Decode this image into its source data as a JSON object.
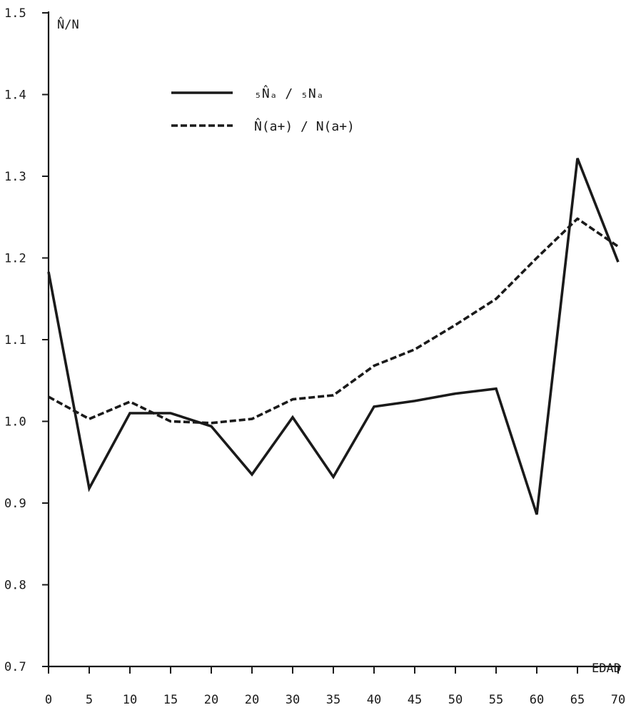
{
  "chart_data": {
    "type": "line",
    "ylabel": "N̂/N",
    "xlabel": "EDAD",
    "x_ticks": [
      "0",
      "5",
      "10",
      "15",
      "20",
      "20",
      "30",
      "35",
      "40",
      "45",
      "50",
      "55",
      "60",
      "65",
      "70"
    ],
    "y_ticks": [
      "0.7",
      "0.8",
      "0.9",
      "1.0",
      "1.1",
      "1.2",
      "1.3",
      "1.4",
      "1.5"
    ],
    "ylim": [
      0.7,
      1.5
    ],
    "grid": false,
    "legend_position": "top-center",
    "series": [
      {
        "name": "₅N̂ₐ / ₅Nₐ",
        "style": "solid",
        "values": [
          1.183,
          0.918,
          1.01,
          1.01,
          0.994,
          0.935,
          1.005,
          0.932,
          1.018,
          1.025,
          1.034,
          1.04,
          0.886,
          1.322,
          1.195
        ]
      },
      {
        "name": "N̂(a+) / N(a+)",
        "style": "dashed",
        "values": [
          1.03,
          1.003,
          1.024,
          1.0,
          0.998,
          1.003,
          1.027,
          1.032,
          1.068,
          1.088,
          1.118,
          1.15,
          1.2,
          1.248,
          1.214
        ]
      }
    ],
    "colors": {
      "ink": "#1a1a1a",
      "background": "#ffffff"
    }
  }
}
